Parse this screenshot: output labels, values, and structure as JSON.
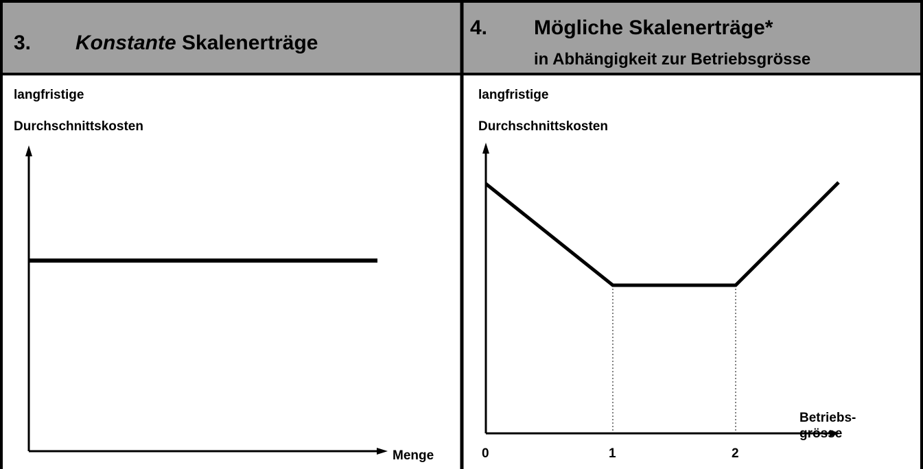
{
  "panels": [
    {
      "number": "3.",
      "title_emphasis": "Konstante",
      "title_rest": "Skalenerträge",
      "y_label": [
        "langfristige",
        "Durchschnittskosten"
      ],
      "x_label": "Menge"
    },
    {
      "number": "4.",
      "title": "Mögliche Skalenerträge*",
      "subtitle": "in Abhängigkeit zur Betriebsgrösse",
      "y_label": [
        "langfristige",
        "Durchschnittskosten"
      ],
      "x_label": [
        "Betriebs-",
        "grösse"
      ],
      "x_ticks": [
        "0",
        "1",
        "2"
      ]
    }
  ]
}
